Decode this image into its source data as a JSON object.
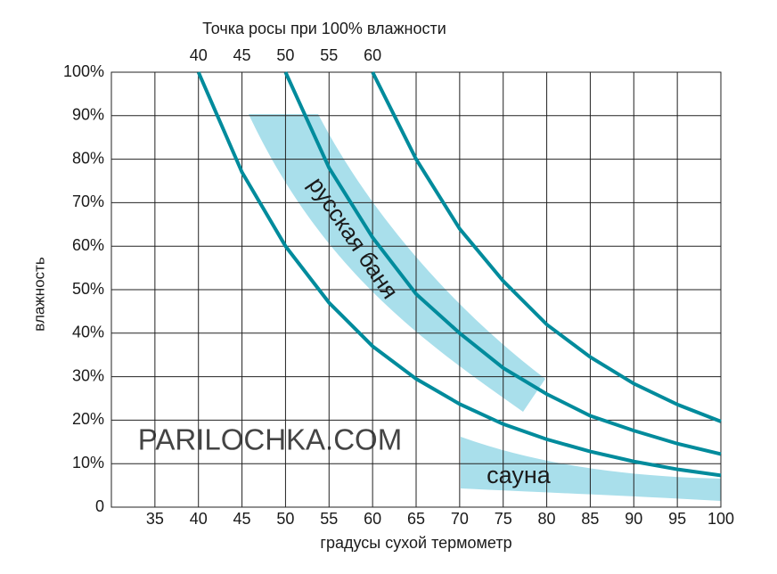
{
  "chart_data": {
    "type": "line",
    "title": "Точка росы при 100% влажности",
    "xlabel": "градусы сухой термометр",
    "ylabel": "влажность",
    "xlim": [
      30,
      100
    ],
    "xticks": [
      35,
      40,
      45,
      50,
      55,
      60,
      65,
      70,
      75,
      80,
      85,
      90,
      95,
      100
    ],
    "top_ticks": [
      40,
      45,
      50,
      55,
      60
    ],
    "ylim": [
      0,
      100
    ],
    "yticks": [
      0,
      {
        "value": 10,
        "label": "10%"
      },
      {
        "value": 20,
        "label": "20%"
      },
      {
        "value": 30,
        "label": "30%"
      },
      {
        "value": 40,
        "label": "40%"
      },
      {
        "value": 50,
        "label": "50%"
      },
      {
        "value": 60,
        "label": "60%"
      },
      {
        "value": 70,
        "label": "70%"
      },
      {
        "value": 80,
        "label": "80%"
      },
      {
        "value": 90,
        "label": "90%"
      },
      {
        "value": 100,
        "label": "100%"
      }
    ],
    "grid": true,
    "line_color": "#008b9c",
    "series": [
      {
        "x": [
          40,
          45,
          50,
          55,
          60,
          65,
          70,
          75,
          80,
          85,
          90,
          95,
          100
        ],
        "values": [
          100,
          77,
          60,
          47,
          37,
          29.5,
          23.7,
          19.1,
          15.6,
          12.8,
          10.5,
          8.7,
          7.3
        ]
      },
      {
        "x": [
          50,
          55,
          60,
          65,
          70,
          75,
          80,
          85,
          90,
          95,
          100
        ],
        "values": [
          100,
          78,
          62,
          49,
          40,
          32,
          26,
          21,
          17.6,
          14.6,
          12.2
        ]
      },
      {
        "x": [
          60,
          65,
          70,
          75,
          80,
          85,
          90,
          95,
          100
        ],
        "values": [
          100,
          80,
          64,
          52,
          42,
          34.5,
          28.4,
          23.6,
          19.7
        ]
      }
    ],
    "annotations": [
      "русская баня",
      "сауна",
      "PARILOCHKA.COM"
    ]
  }
}
